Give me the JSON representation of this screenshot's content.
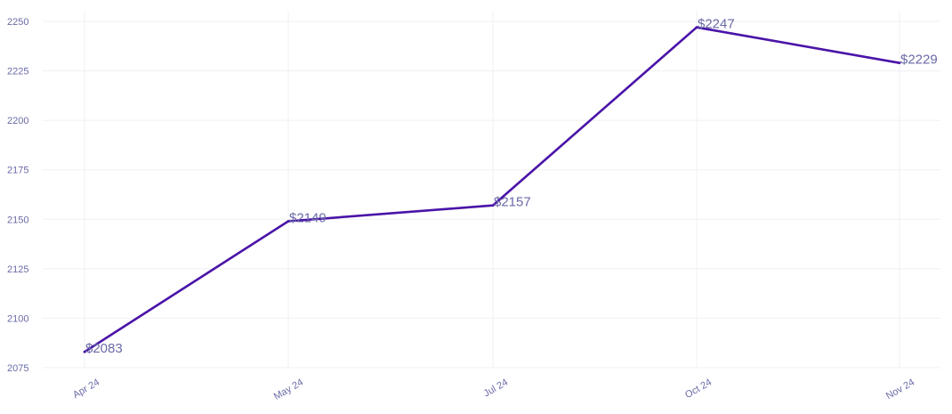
{
  "chart_data": {
    "type": "line",
    "title": "",
    "xlabel": "",
    "ylabel": "",
    "categories": [
      "Apr 24",
      "May 24",
      "Jul 24",
      "Oct 24",
      "Nov 24"
    ],
    "series": [
      {
        "values": [
          2083,
          2149,
          2157,
          2247,
          2229
        ],
        "data_labels": [
          "$2083",
          "$2149",
          "$2157",
          "$2247",
          "$2229"
        ]
      }
    ],
    "ylim": [
      2075,
      2255
    ],
    "yticks": [
      2075,
      2100,
      2125,
      2150,
      2175,
      2200,
      2225,
      2250
    ],
    "grid": true,
    "colors": {
      "line": "#4a14a8",
      "tick_text": "#6a6aa8",
      "data_label_text": "#6a6aa8",
      "grid": "#f0f0f3"
    }
  }
}
